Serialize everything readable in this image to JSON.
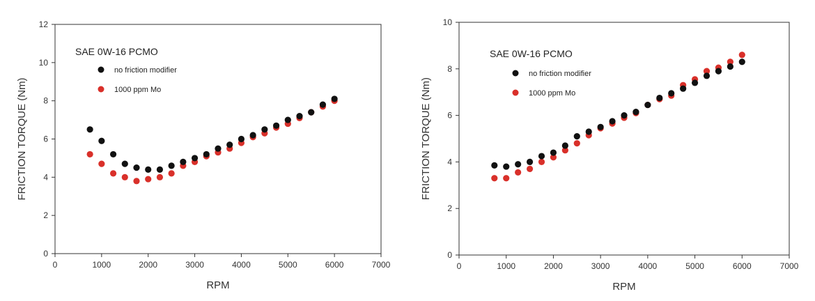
{
  "chart_data": [
    {
      "type": "scatter",
      "title": "SAE 0W-16 PCMO",
      "xlabel": "RPM",
      "ylabel": "FRICTION TORQUE (Nm)",
      "xlim": [
        0,
        7000
      ],
      "ylim": [
        0,
        12
      ],
      "xticks": [
        "0",
        "1000",
        "2000",
        "3000",
        "4000",
        "5000",
        "6000",
        "7000"
      ],
      "yticks": [
        "0",
        "2",
        "4",
        "6",
        "8",
        "10",
        "12"
      ],
      "grid": false,
      "legend_position": "top-left",
      "x": [
        750,
        1000,
        1250,
        1500,
        1750,
        2000,
        2250,
        2500,
        2750,
        3000,
        3250,
        3500,
        3750,
        4000,
        4250,
        4500,
        4750,
        5000,
        5250,
        5500,
        5750,
        6000
      ],
      "series": [
        {
          "name": "no friction modifier",
          "color": "#111111",
          "values": [
            6.5,
            5.9,
            5.2,
            4.7,
            4.5,
            4.4,
            4.4,
            4.6,
            4.8,
            5.0,
            5.2,
            5.5,
            5.7,
            6.0,
            6.2,
            6.5,
            6.7,
            7.0,
            7.2,
            7.4,
            7.8,
            8.1
          ]
        },
        {
          "name": "1000 ppm Mo",
          "color": "#d9302a",
          "values": [
            5.2,
            4.7,
            4.2,
            4.0,
            3.8,
            3.9,
            4.0,
            4.2,
            4.6,
            4.8,
            5.1,
            5.3,
            5.5,
            5.8,
            6.1,
            6.3,
            6.6,
            6.8,
            7.1,
            7.4,
            7.7,
            8.0
          ]
        }
      ]
    },
    {
      "type": "scatter",
      "title": "SAE 0W-16 PCMO",
      "xlabel": "RPM",
      "ylabel": "FRICTION TORQUE (Nm)",
      "xlim": [
        0,
        7000
      ],
      "ylim": [
        0,
        10
      ],
      "xticks": [
        "0",
        "1000",
        "2000",
        "3000",
        "4000",
        "5000",
        "6000",
        "7000"
      ],
      "yticks": [
        "0",
        "2",
        "4",
        "6",
        "8",
        "10"
      ],
      "grid": false,
      "legend_position": "top-left",
      "x": [
        750,
        1000,
        1250,
        1500,
        1750,
        2000,
        2250,
        2500,
        2750,
        3000,
        3250,
        3500,
        3750,
        4000,
        4250,
        4500,
        4750,
        5000,
        5250,
        5500,
        5750,
        6000
      ],
      "series": [
        {
          "name": "no friction modifier",
          "color": "#111111",
          "values": [
            3.85,
            3.8,
            3.9,
            4.0,
            4.25,
            4.4,
            4.7,
            5.1,
            5.3,
            5.5,
            5.75,
            6.0,
            6.15,
            6.45,
            6.75,
            6.95,
            7.15,
            7.4,
            7.7,
            7.9,
            8.1,
            8.3
          ]
        },
        {
          "name": "1000 ppm Mo",
          "color": "#d9302a",
          "values": [
            3.3,
            3.3,
            3.55,
            3.7,
            4.0,
            4.2,
            4.5,
            4.8,
            5.15,
            5.45,
            5.65,
            5.9,
            6.1,
            6.45,
            6.7,
            6.85,
            7.3,
            7.55,
            7.9,
            8.05,
            8.3,
            8.6
          ]
        }
      ]
    }
  ]
}
